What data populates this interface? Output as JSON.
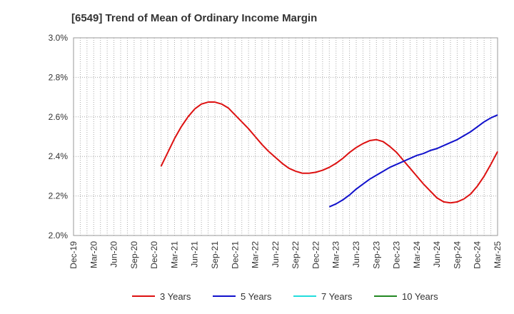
{
  "chart_data": {
    "type": "line",
    "title": "[6549]  Trend of Mean of Ordinary Income Margin",
    "xlabel": "",
    "ylabel": "",
    "x_ticks": [
      "Dec-19",
      "Mar-20",
      "Jun-20",
      "Sep-20",
      "Dec-20",
      "Mar-21",
      "Jun-21",
      "Sep-21",
      "Dec-21",
      "Mar-22",
      "Jun-22",
      "Sep-22",
      "Dec-22",
      "Mar-23",
      "Jun-23",
      "Sep-23",
      "Dec-23",
      "Mar-24",
      "Jun-24",
      "Sep-24",
      "Dec-24",
      "Mar-25"
    ],
    "y_ticks": [
      "2.0%",
      "2.2%",
      "2.4%",
      "2.6%",
      "2.8%",
      "3.0%"
    ],
    "ylim": [
      2.0,
      3.0
    ],
    "grid": true,
    "legend_position": "bottom",
    "series": [
      {
        "name": "3 Years",
        "color": "#dd1111",
        "points": [
          [
            "Jan-21",
            2.35
          ],
          [
            "Feb-21",
            2.42
          ],
          [
            "Mar-21",
            2.49
          ],
          [
            "Apr-21",
            2.55
          ],
          [
            "May-21",
            2.6
          ],
          [
            "Jun-21",
            2.64
          ],
          [
            "Jul-21",
            2.665
          ],
          [
            "Aug-21",
            2.675
          ],
          [
            "Sep-21",
            2.675
          ],
          [
            "Oct-21",
            2.665
          ],
          [
            "Nov-21",
            2.645
          ],
          [
            "Dec-21",
            2.61
          ],
          [
            "Jan-22",
            2.575
          ],
          [
            "Feb-22",
            2.54
          ],
          [
            "Mar-22",
            2.5
          ],
          [
            "Apr-22",
            2.46
          ],
          [
            "May-22",
            2.425
          ],
          [
            "Jun-22",
            2.395
          ],
          [
            "Jul-22",
            2.365
          ],
          [
            "Aug-22",
            2.34
          ],
          [
            "Sep-22",
            2.325
          ],
          [
            "Oct-22",
            2.315
          ],
          [
            "Nov-22",
            2.315
          ],
          [
            "Dec-22",
            2.32
          ],
          [
            "Jan-23",
            2.33
          ],
          [
            "Feb-23",
            2.345
          ],
          [
            "Mar-23",
            2.365
          ],
          [
            "Apr-23",
            2.39
          ],
          [
            "May-23",
            2.42
          ],
          [
            "Jun-23",
            2.445
          ],
          [
            "Jul-23",
            2.465
          ],
          [
            "Aug-23",
            2.48
          ],
          [
            "Sep-23",
            2.485
          ],
          [
            "Oct-23",
            2.475
          ],
          [
            "Nov-23",
            2.45
          ],
          [
            "Dec-23",
            2.42
          ],
          [
            "Jan-24",
            2.38
          ],
          [
            "Feb-24",
            2.34
          ],
          [
            "Mar-24",
            2.3
          ],
          [
            "Apr-24",
            2.26
          ],
          [
            "May-24",
            2.225
          ],
          [
            "Jun-24",
            2.19
          ],
          [
            "Jul-24",
            2.17
          ],
          [
            "Aug-24",
            2.165
          ],
          [
            "Sep-24",
            2.17
          ],
          [
            "Oct-24",
            2.185
          ],
          [
            "Nov-24",
            2.21
          ],
          [
            "Dec-24",
            2.25
          ],
          [
            "Jan-25",
            2.3
          ],
          [
            "Feb-25",
            2.36
          ],
          [
            "Mar-25",
            2.425
          ]
        ]
      },
      {
        "name": "5 Years",
        "color": "#1111cc",
        "points": [
          [
            "Feb-23",
            2.145
          ],
          [
            "Mar-23",
            2.16
          ],
          [
            "Apr-23",
            2.18
          ],
          [
            "May-23",
            2.205
          ],
          [
            "Jun-23",
            2.235
          ],
          [
            "Jul-23",
            2.26
          ],
          [
            "Aug-23",
            2.285
          ],
          [
            "Sep-23",
            2.305
          ],
          [
            "Oct-23",
            2.325
          ],
          [
            "Nov-23",
            2.345
          ],
          [
            "Dec-23",
            2.36
          ],
          [
            "Jan-24",
            2.375
          ],
          [
            "Feb-24",
            2.39
          ],
          [
            "Mar-24",
            2.405
          ],
          [
            "Apr-24",
            2.415
          ],
          [
            "May-24",
            2.43
          ],
          [
            "Jun-24",
            2.44
          ],
          [
            "Jul-24",
            2.455
          ],
          [
            "Aug-24",
            2.47
          ],
          [
            "Sep-24",
            2.485
          ],
          [
            "Oct-24",
            2.505
          ],
          [
            "Nov-24",
            2.525
          ],
          [
            "Dec-24",
            2.55
          ],
          [
            "Jan-25",
            2.575
          ],
          [
            "Feb-25",
            2.595
          ],
          [
            "Mar-25",
            2.61
          ]
        ]
      },
      {
        "name": "7 Years",
        "color": "#22dddd",
        "points": []
      },
      {
        "name": "10 Years",
        "color": "#228822",
        "points": []
      }
    ]
  }
}
